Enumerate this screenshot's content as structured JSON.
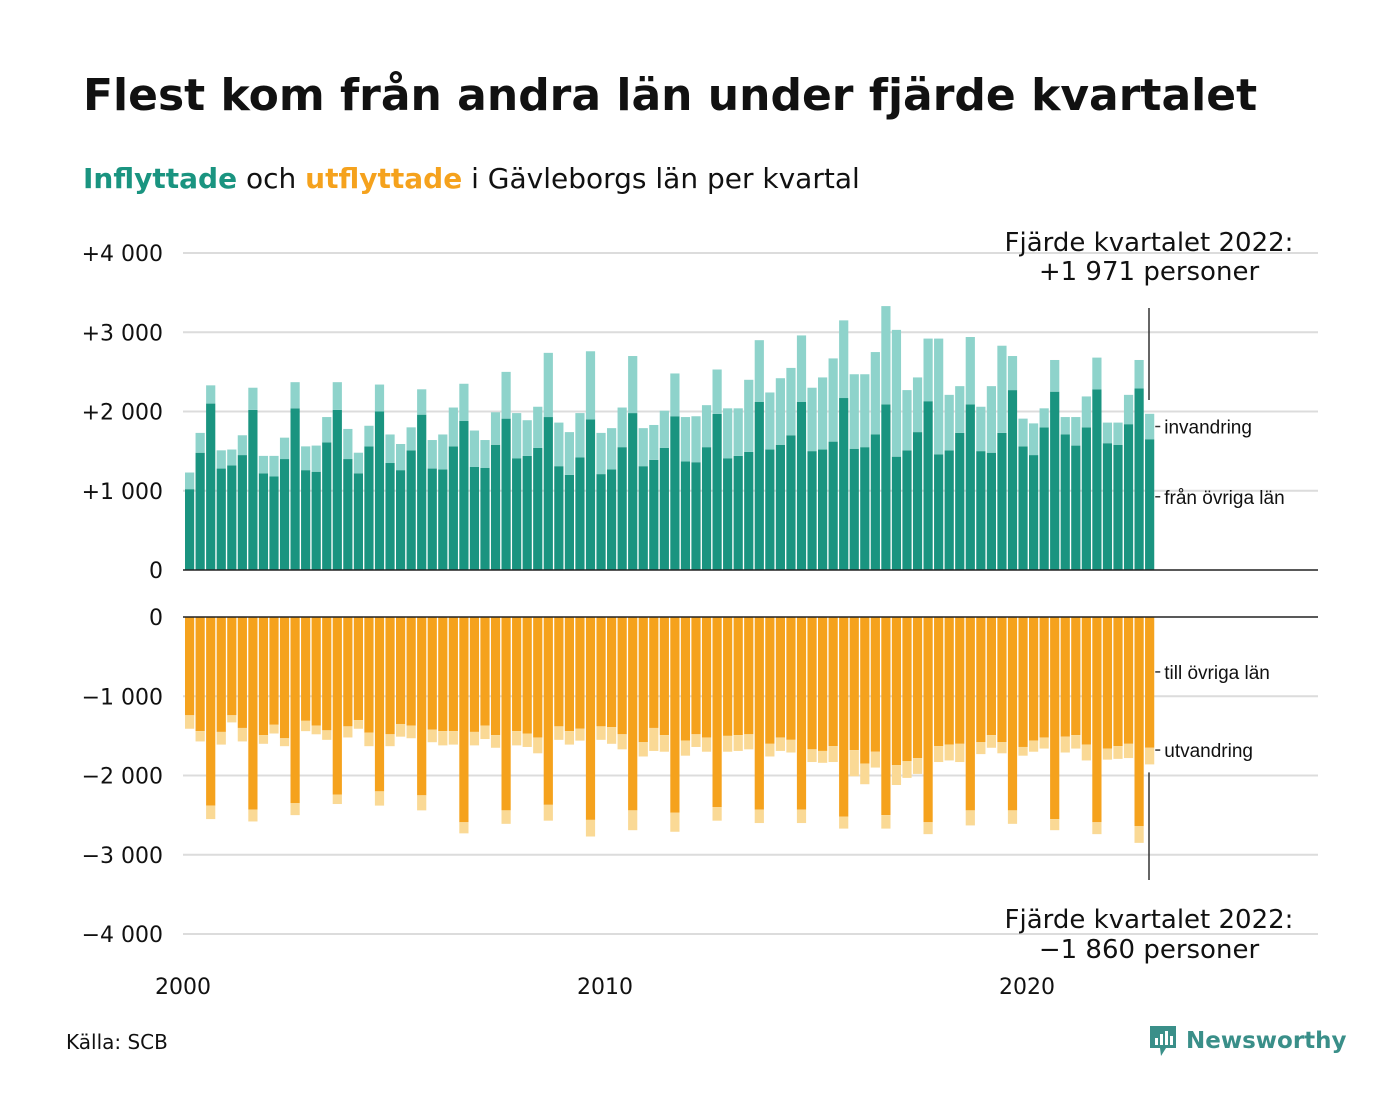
{
  "title": "Flest kom från andra län under fjärde kvartalet",
  "subtitle": {
    "in_word": "Inflyttade",
    "and_word": "och",
    "out_word": "utflyttade",
    "rest": "i Gävleborgs län per kvartal"
  },
  "source": "Källa: SCB",
  "brand": "Newsworthy",
  "colors": {
    "in_dark": "#1a9480",
    "in_light": "#8ed3cb",
    "out_dark": "#f5a21d",
    "out_light": "#fad995",
    "brand": "#3a8f89"
  },
  "annotations": {
    "top_line1": "Fjärde kvartalet 2022:",
    "top_line2": "+1 971 personer",
    "bottom_line1": "Fjärde kvartalet 2022:",
    "bottom_line2": "−1 860 personer"
  },
  "chart_data": {
    "type": "bar",
    "x_start": "2000-Q1",
    "x_end": "2022-Q4",
    "x_ticks": [
      "2000",
      "2010",
      "2020"
    ],
    "upper": {
      "y_ticks": [
        "+4 000",
        "+3 000",
        "+2 000",
        "+1 000",
        "0"
      ],
      "ylim": [
        0,
        4000
      ],
      "series": [
        {
          "name": "från övriga län",
          "values": [
            1020,
            1480,
            2100,
            1280,
            1320,
            1450,
            2020,
            1220,
            1180,
            1400,
            2040,
            1260,
            1240,
            1610,
            2020,
            1400,
            1220,
            1560,
            2000,
            1350,
            1260,
            1510,
            1960,
            1280,
            1270,
            1560,
            1880,
            1300,
            1290,
            1580,
            1910,
            1410,
            1440,
            1540,
            1930,
            1310,
            1200,
            1420,
            1900,
            1210,
            1270,
            1550,
            1980,
            1310,
            1390,
            1540,
            1940,
            1370,
            1360,
            1550,
            1970,
            1410,
            1440,
            1490,
            2120,
            1520,
            1580,
            1700,
            2120,
            1500,
            1520,
            1620,
            2170,
            1530,
            1550,
            1710,
            2090,
            1430,
            1510,
            1740,
            2130,
            1460,
            1510,
            1730,
            2090,
            1500,
            1480,
            1730,
            2270,
            1560,
            1450,
            1800,
            2250,
            1710,
            1570,
            1800,
            2280,
            1600,
            1580,
            1840,
            2290,
            1650
          ]
        },
        {
          "name": "invandring",
          "values": [
            210,
            250,
            230,
            230,
            200,
            250,
            280,
            220,
            260,
            270,
            330,
            300,
            330,
            320,
            350,
            380,
            260,
            260,
            340,
            360,
            330,
            290,
            320,
            360,
            440,
            490,
            470,
            460,
            350,
            410,
            590,
            570,
            450,
            520,
            810,
            550,
            540,
            560,
            860,
            520,
            520,
            500,
            720,
            480,
            440,
            470,
            540,
            560,
            580,
            530,
            560,
            630,
            600,
            910,
            780,
            720,
            840,
            850,
            840,
            800,
            910,
            1050,
            980,
            940,
            920,
            1040,
            1240,
            1600,
            760,
            690,
            790,
            1460,
            700,
            590,
            850,
            560,
            840,
            1100,
            430,
            350,
            400,
            240,
            400,
            220,
            360,
            390,
            400,
            260,
            280,
            370,
            360,
            321
          ]
        }
      ]
    },
    "lower": {
      "y_ticks": [
        "0",
        "−1 000",
        "−2 000",
        "−3 000",
        "−4 000"
      ],
      "ylim": [
        -4000,
        0
      ],
      "series": [
        {
          "name": "till övriga län",
          "values": [
            -1240,
            -1440,
            -2380,
            -1450,
            -1240,
            -1400,
            -2430,
            -1490,
            -1360,
            -1530,
            -2350,
            -1310,
            -1370,
            -1430,
            -2240,
            -1380,
            -1300,
            -1460,
            -2200,
            -1480,
            -1350,
            -1370,
            -2250,
            -1420,
            -1440,
            -1440,
            -2590,
            -1450,
            -1370,
            -1490,
            -2440,
            -1440,
            -1470,
            -1520,
            -2370,
            -1380,
            -1440,
            -1410,
            -2560,
            -1380,
            -1390,
            -1480,
            -2440,
            -1580,
            -1400,
            -1490,
            -2470,
            -1560,
            -1480,
            -1520,
            -2400,
            -1500,
            -1490,
            -1480,
            -2430,
            -1600,
            -1520,
            -1550,
            -2430,
            -1670,
            -1690,
            -1630,
            -2520,
            -1680,
            -1850,
            -1700,
            -2500,
            -1870,
            -1820,
            -1780,
            -2590,
            -1630,
            -1610,
            -1600,
            -2440,
            -1580,
            -1490,
            -1580,
            -2440,
            -1640,
            -1560,
            -1520,
            -2550,
            -1510,
            -1490,
            -1610,
            -2590,
            -1660,
            -1630,
            -1600,
            -2640,
            -1650
          ]
        },
        {
          "name": "utvandring",
          "values": [
            -170,
            -130,
            -170,
            -160,
            -90,
            -170,
            -150,
            -110,
            -110,
            -100,
            -150,
            -130,
            -110,
            -120,
            -120,
            -140,
            -110,
            -170,
            -180,
            -150,
            -160,
            -160,
            -190,
            -160,
            -180,
            -170,
            -140,
            -170,
            -170,
            -160,
            -170,
            -180,
            -170,
            -200,
            -200,
            -170,
            -170,
            -150,
            -210,
            -170,
            -210,
            -190,
            -250,
            -180,
            -290,
            -210,
            -240,
            -190,
            -160,
            -180,
            -170,
            -200,
            -200,
            -190,
            -170,
            -160,
            -170,
            -160,
            -170,
            -160,
            -150,
            -200,
            -150,
            -330,
            -260,
            -200,
            -170,
            -250,
            -210,
            -200,
            -150,
            -200,
            -200,
            -230,
            -190,
            -150,
            -160,
            -140,
            -170,
            -110,
            -140,
            -140,
            -140,
            -200,
            -170,
            -200,
            -150,
            -140,
            -160,
            -180,
            -210,
            -210
          ]
        }
      ]
    }
  }
}
